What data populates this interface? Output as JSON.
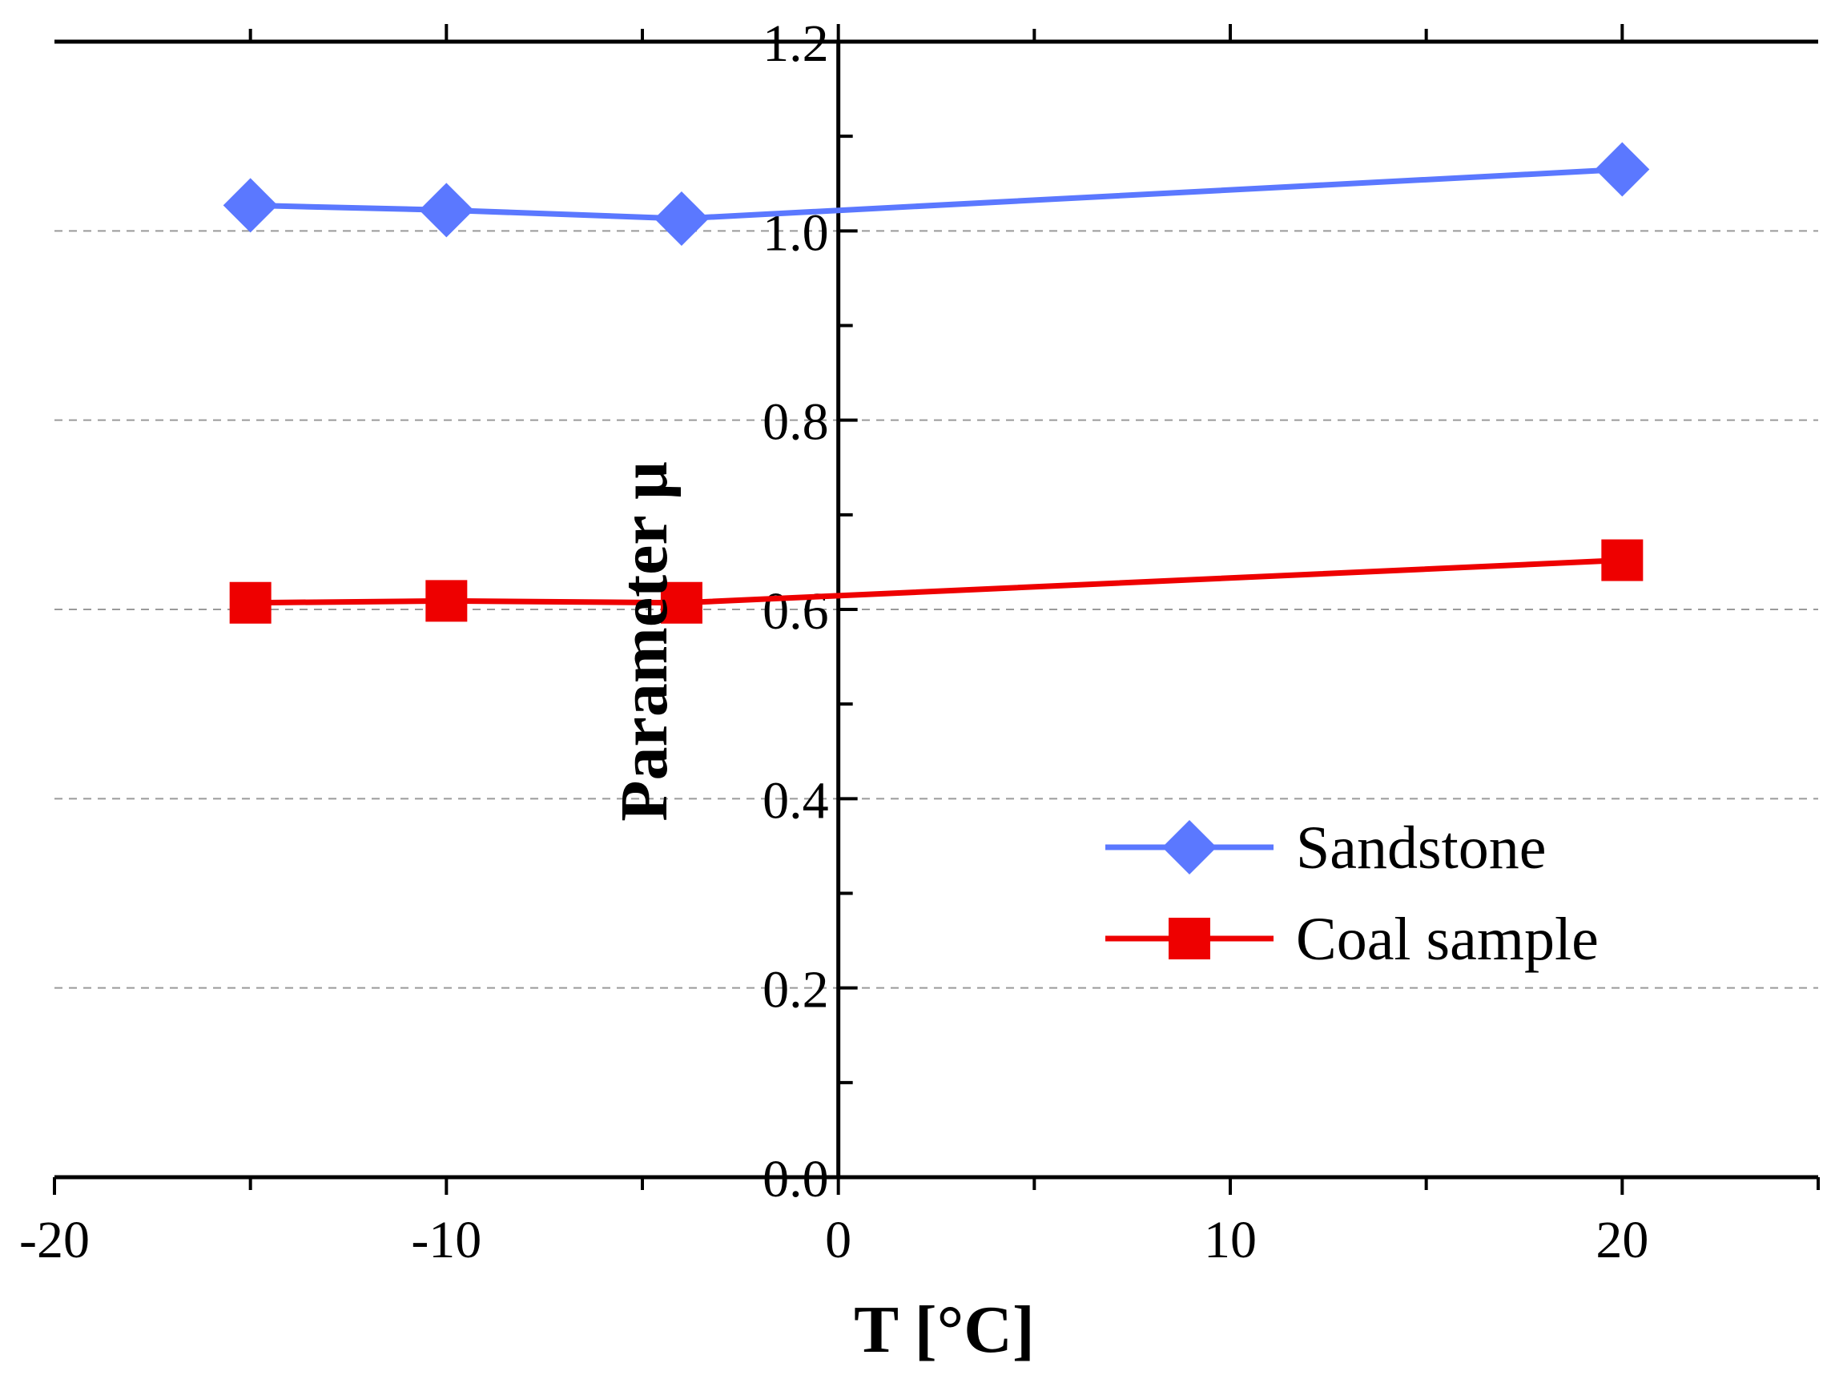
{
  "chart_data": {
    "type": "line",
    "xlabel": "T [°C]",
    "ylabel": "Parameter  μ",
    "xlim": [
      -20,
      25
    ],
    "ylim": [
      0.0,
      1.2
    ],
    "x_ticks": [
      -20,
      -10,
      0,
      10,
      20
    ],
    "x_tick_labels": [
      "-20",
      "-10",
      "0",
      "10",
      "20"
    ],
    "y_ticks": [
      0.0,
      0.2,
      0.4,
      0.6,
      0.8,
      1.0,
      1.2
    ],
    "y_tick_labels": [
      "0.0",
      "0.2",
      "0.4",
      "0.6",
      "0.8",
      "1.0",
      "1.2"
    ],
    "x_minor_step": 5,
    "y_minor_step": 0.1,
    "grid": "horizontal dashed at major y ticks",
    "legend_position": "lower-right",
    "series": [
      {
        "name": "Sandstone",
        "color": "#5B78FF",
        "marker": "diamond",
        "x": [
          -15,
          -10,
          -4,
          20
        ],
        "y": [
          1.027,
          1.022,
          1.013,
          1.065
        ]
      },
      {
        "name": "Coal sample",
        "color": "#EE0000",
        "marker": "square",
        "x": [
          -15,
          -10,
          -4,
          20
        ],
        "y": [
          0.607,
          0.609,
          0.607,
          0.652
        ]
      }
    ]
  }
}
